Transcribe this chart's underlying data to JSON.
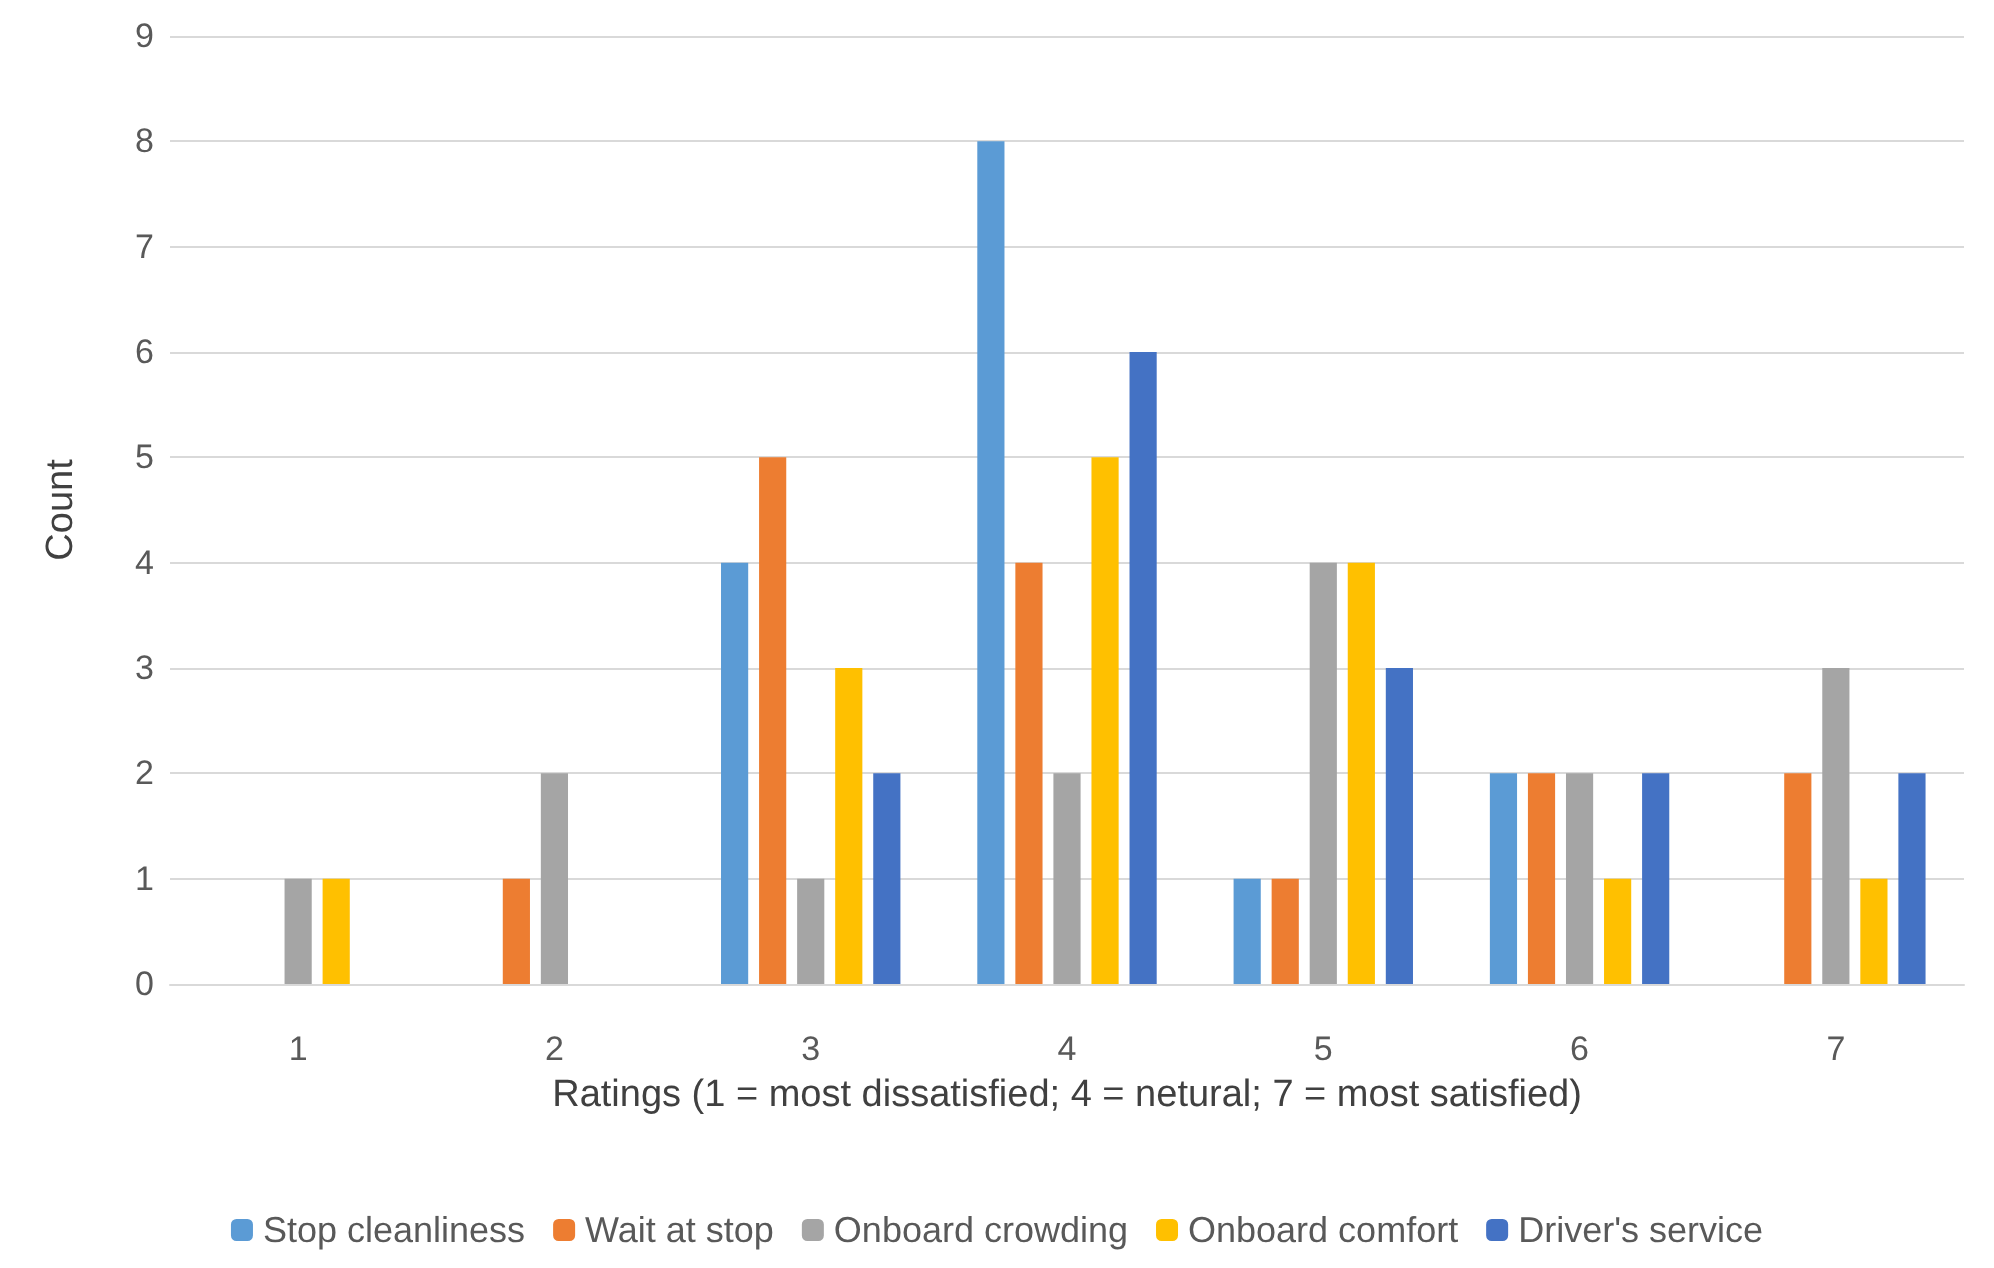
{
  "chart_data": {
    "type": "bar",
    "xlabel": "Ratings (1 = most dissatisfied; 4 = netural; 7 = most satisfied)",
    "ylabel": "Count",
    "categories": [
      "1",
      "2",
      "3",
      "4",
      "5",
      "6",
      "7"
    ],
    "series": [
      {
        "name": "Stop cleanliness",
        "color": "#5b9bd5",
        "values": [
          0,
          0,
          4,
          8,
          1,
          2,
          0
        ]
      },
      {
        "name": "Wait at stop",
        "color": "#ed7d31",
        "values": [
          0,
          1,
          5,
          4,
          1,
          2,
          2
        ]
      },
      {
        "name": "Onboard crowding",
        "color": "#a5a5a5",
        "values": [
          1,
          2,
          1,
          2,
          4,
          2,
          3
        ]
      },
      {
        "name": "Onboard comfort",
        "color": "#ffc000",
        "values": [
          1,
          0,
          3,
          5,
          4,
          1,
          1
        ]
      },
      {
        "name": "Driver's service",
        "color": "#4472c4",
        "values": [
          0,
          0,
          2,
          6,
          3,
          2,
          2
        ]
      }
    ],
    "ylim": [
      0,
      9
    ],
    "yticks": [
      0,
      1,
      2,
      3,
      4,
      5,
      6,
      7,
      8,
      9
    ],
    "grid": "y",
    "legend": "bottom"
  }
}
